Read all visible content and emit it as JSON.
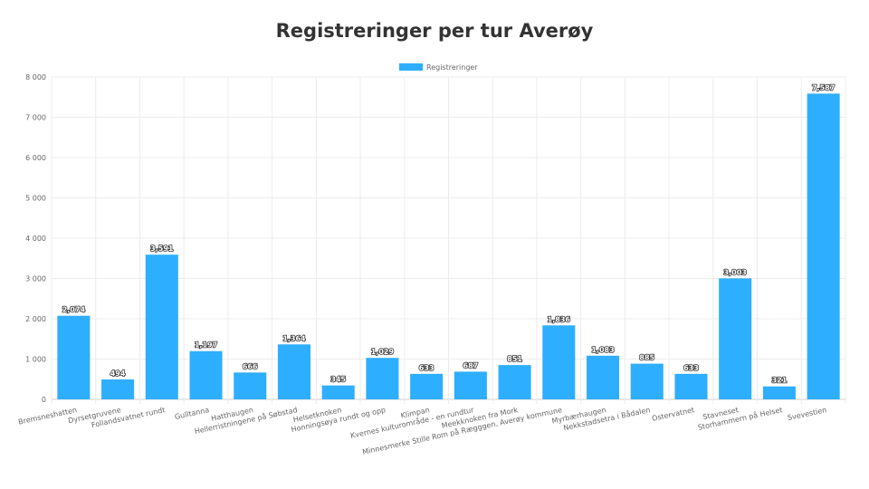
{
  "chart_data": {
    "type": "bar",
    "title": "Registreringer per tur Averøy",
    "legend": {
      "position": "top",
      "label": "Registreringer"
    },
    "series": [
      {
        "name": "Registreringer",
        "color": "#2eaefe"
      }
    ],
    "categories": [
      "Bremsneshatten",
      "Dyrsetgruvene",
      "Follandsvatnet rundt",
      "Gulltanna",
      "Hatthaugen",
      "Hellerristningene på Søbstad",
      "Helsetknoken",
      "Honningsøya rundt og opp",
      "Klimpan",
      "Kvernes kulturområde - en rundtur",
      "Meekknoken fra Mork",
      "Minnesmerke Stille Rom på Rægggen, Averøy kommune",
      "Myrbærhaugen",
      "Nekkstadsetra i Bådalen",
      "Ostervatnet",
      "Stavneset",
      "Storhammern på Helset",
      "Svevestien"
    ],
    "values": [
      2074,
      494,
      3591,
      1197,
      666,
      1364,
      345,
      1029,
      633,
      687,
      851,
      1836,
      1083,
      885,
      633,
      3003,
      321,
      7587
    ],
    "value_labels": [
      "2,074",
      "494",
      "3,591",
      "1,197",
      "666",
      "1,364",
      "345",
      "1,029",
      "633",
      "687",
      "851",
      "1,836",
      "1,083",
      "885",
      "633",
      "3,003",
      "321",
      "7,587"
    ],
    "ylim": [
      0,
      8000
    ],
    "yticks": [
      0,
      1000,
      2000,
      3000,
      4000,
      5000,
      6000,
      7000,
      8000
    ],
    "ytick_labels": [
      "0",
      "1 000",
      "2 000",
      "3 000",
      "4 000",
      "5 000",
      "6 000",
      "7 000",
      "8 000"
    ],
    "grid": true,
    "xlabel": "",
    "ylabel": ""
  }
}
